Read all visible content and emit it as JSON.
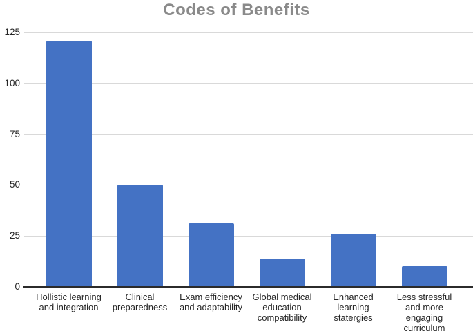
{
  "chart_data": {
    "type": "bar",
    "title": "Codes of Benefits",
    "categories": [
      "Hollistic learning and integration",
      "Clinical preparedness",
      "Exam efficiency and adaptability",
      "Global medical education compatibility",
      "Enhanced learning statergies",
      "Less stressful and more engaging curriculum"
    ],
    "values": [
      121,
      50,
      31,
      14,
      26,
      10
    ],
    "xlabel": "",
    "ylabel": "",
    "ylim": [
      0,
      125
    ],
    "yticks": [
      0,
      25,
      50,
      75,
      100,
      125
    ],
    "grid": true,
    "legend": false,
    "colors": {
      "bar": "#4472c4",
      "gridline": "#d9d9d9",
      "axis_line": "#2b2b2b",
      "tick_label": "#262626",
      "title": "#8a8a8a"
    }
  }
}
